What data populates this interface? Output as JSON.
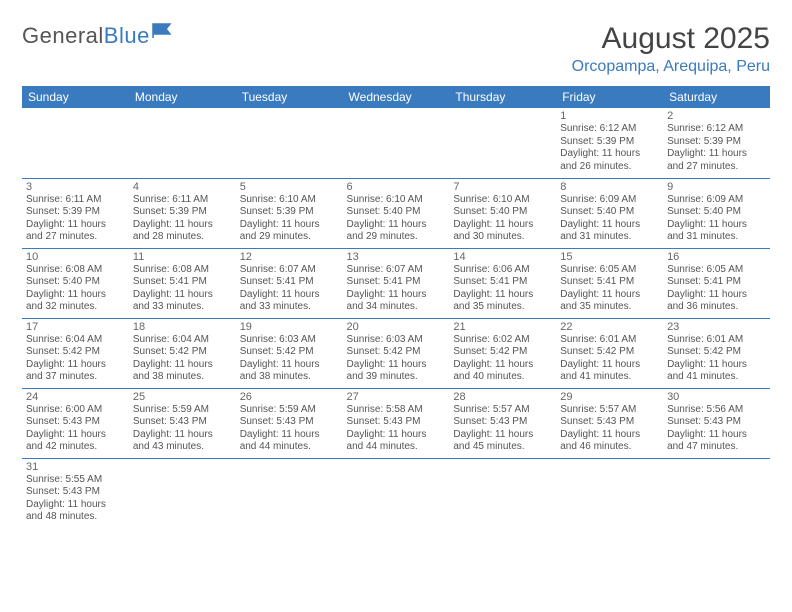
{
  "brand": {
    "part1": "General",
    "part2": "Blue"
  },
  "title": "August 2025",
  "location": "Orcopampa, Arequipa, Peru",
  "colors": {
    "header_bg": "#3a7bbf",
    "header_text": "#ffffff",
    "border": "#3a7bbf",
    "text": "#555555",
    "title_text": "#444444",
    "location_text": "#3a7bbf"
  },
  "day_headers": [
    "Sunday",
    "Monday",
    "Tuesday",
    "Wednesday",
    "Thursday",
    "Friday",
    "Saturday"
  ],
  "weeks": [
    [
      null,
      null,
      null,
      null,
      null,
      {
        "n": "1",
        "sr": "6:12 AM",
        "ss": "5:39 PM",
        "dl": "11 hours and 26 minutes."
      },
      {
        "n": "2",
        "sr": "6:12 AM",
        "ss": "5:39 PM",
        "dl": "11 hours and 27 minutes."
      }
    ],
    [
      {
        "n": "3",
        "sr": "6:11 AM",
        "ss": "5:39 PM",
        "dl": "11 hours and 27 minutes."
      },
      {
        "n": "4",
        "sr": "6:11 AM",
        "ss": "5:39 PM",
        "dl": "11 hours and 28 minutes."
      },
      {
        "n": "5",
        "sr": "6:10 AM",
        "ss": "5:39 PM",
        "dl": "11 hours and 29 minutes."
      },
      {
        "n": "6",
        "sr": "6:10 AM",
        "ss": "5:40 PM",
        "dl": "11 hours and 29 minutes."
      },
      {
        "n": "7",
        "sr": "6:10 AM",
        "ss": "5:40 PM",
        "dl": "11 hours and 30 minutes."
      },
      {
        "n": "8",
        "sr": "6:09 AM",
        "ss": "5:40 PM",
        "dl": "11 hours and 31 minutes."
      },
      {
        "n": "9",
        "sr": "6:09 AM",
        "ss": "5:40 PM",
        "dl": "11 hours and 31 minutes."
      }
    ],
    [
      {
        "n": "10",
        "sr": "6:08 AM",
        "ss": "5:40 PM",
        "dl": "11 hours and 32 minutes."
      },
      {
        "n": "11",
        "sr": "6:08 AM",
        "ss": "5:41 PM",
        "dl": "11 hours and 33 minutes."
      },
      {
        "n": "12",
        "sr": "6:07 AM",
        "ss": "5:41 PM",
        "dl": "11 hours and 33 minutes."
      },
      {
        "n": "13",
        "sr": "6:07 AM",
        "ss": "5:41 PM",
        "dl": "11 hours and 34 minutes."
      },
      {
        "n": "14",
        "sr": "6:06 AM",
        "ss": "5:41 PM",
        "dl": "11 hours and 35 minutes."
      },
      {
        "n": "15",
        "sr": "6:05 AM",
        "ss": "5:41 PM",
        "dl": "11 hours and 35 minutes."
      },
      {
        "n": "16",
        "sr": "6:05 AM",
        "ss": "5:41 PM",
        "dl": "11 hours and 36 minutes."
      }
    ],
    [
      {
        "n": "17",
        "sr": "6:04 AM",
        "ss": "5:42 PM",
        "dl": "11 hours and 37 minutes."
      },
      {
        "n": "18",
        "sr": "6:04 AM",
        "ss": "5:42 PM",
        "dl": "11 hours and 38 minutes."
      },
      {
        "n": "19",
        "sr": "6:03 AM",
        "ss": "5:42 PM",
        "dl": "11 hours and 38 minutes."
      },
      {
        "n": "20",
        "sr": "6:03 AM",
        "ss": "5:42 PM",
        "dl": "11 hours and 39 minutes."
      },
      {
        "n": "21",
        "sr": "6:02 AM",
        "ss": "5:42 PM",
        "dl": "11 hours and 40 minutes."
      },
      {
        "n": "22",
        "sr": "6:01 AM",
        "ss": "5:42 PM",
        "dl": "11 hours and 41 minutes."
      },
      {
        "n": "23",
        "sr": "6:01 AM",
        "ss": "5:42 PM",
        "dl": "11 hours and 41 minutes."
      }
    ],
    [
      {
        "n": "24",
        "sr": "6:00 AM",
        "ss": "5:43 PM",
        "dl": "11 hours and 42 minutes."
      },
      {
        "n": "25",
        "sr": "5:59 AM",
        "ss": "5:43 PM",
        "dl": "11 hours and 43 minutes."
      },
      {
        "n": "26",
        "sr": "5:59 AM",
        "ss": "5:43 PM",
        "dl": "11 hours and 44 minutes."
      },
      {
        "n": "27",
        "sr": "5:58 AM",
        "ss": "5:43 PM",
        "dl": "11 hours and 44 minutes."
      },
      {
        "n": "28",
        "sr": "5:57 AM",
        "ss": "5:43 PM",
        "dl": "11 hours and 45 minutes."
      },
      {
        "n": "29",
        "sr": "5:57 AM",
        "ss": "5:43 PM",
        "dl": "11 hours and 46 minutes."
      },
      {
        "n": "30",
        "sr": "5:56 AM",
        "ss": "5:43 PM",
        "dl": "11 hours and 47 minutes."
      }
    ],
    [
      {
        "n": "31",
        "sr": "5:55 AM",
        "ss": "5:43 PM",
        "dl": "11 hours and 48 minutes."
      },
      null,
      null,
      null,
      null,
      null,
      null
    ]
  ],
  "labels": {
    "sunrise": "Sunrise:",
    "sunset": "Sunset:",
    "daylight": "Daylight:"
  }
}
